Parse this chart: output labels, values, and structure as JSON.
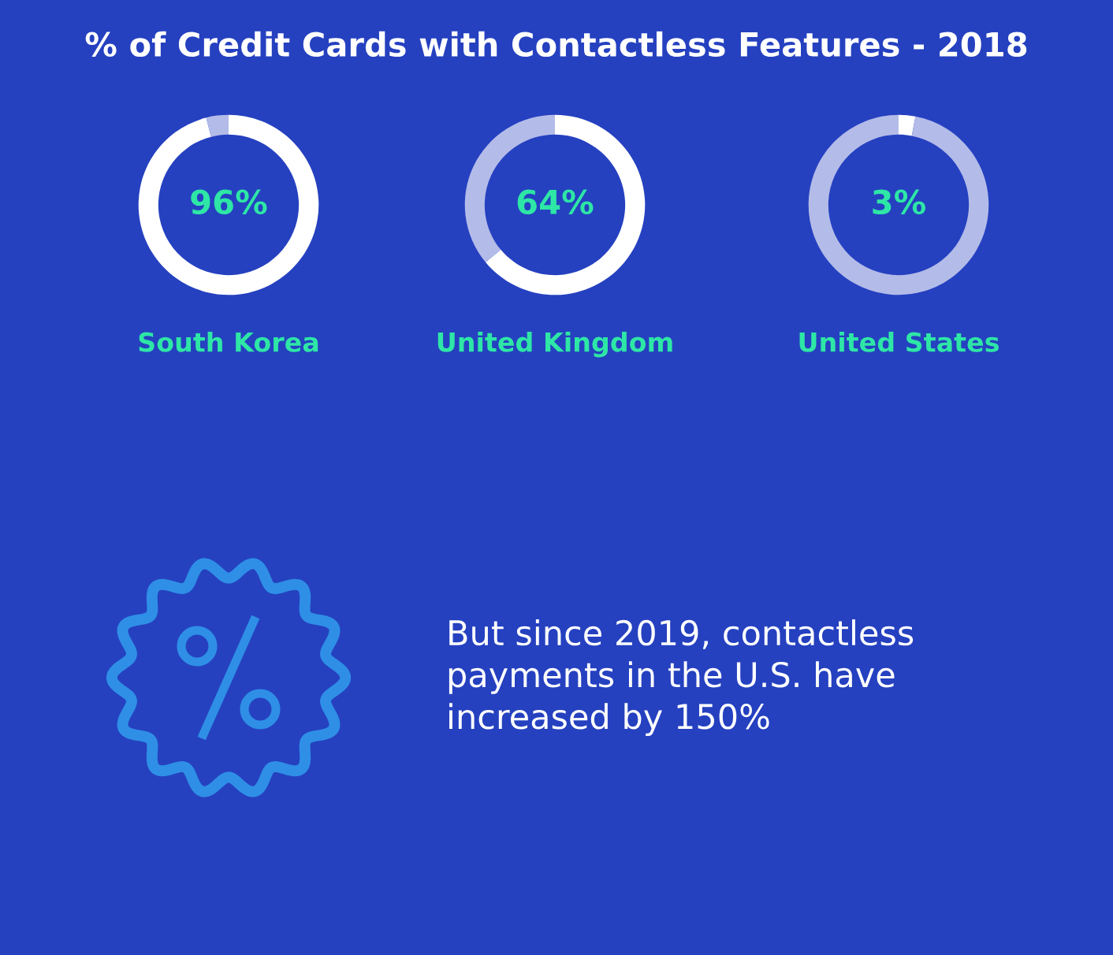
{
  "chart_data": [
    {
      "type": "donut",
      "title": "% of Credit Cards with Contactless Features - 2018",
      "xlabel": "South Korea",
      "categories": [
        null,
        null
      ],
      "values": [
        96,
        4
      ],
      "colors": [
        "#ffffff",
        "#b3bbe8"
      ],
      "value_labels": [
        "96%",
        null
      ]
    },
    {
      "type": "donut",
      "xlabel": "United Kingdom",
      "categories": [
        null,
        null
      ],
      "values": [
        64,
        36
      ],
      "colors": [
        "#ffffff",
        "#b3bbe8"
      ],
      "value_labels": [
        "64%",
        null
      ]
    },
    {
      "type": "donut",
      "xlabel": "United States",
      "categories": [
        null,
        null
      ],
      "values": [
        3,
        97
      ],
      "colors": [
        "#ffffff",
        "#b3bbe8"
      ],
      "value_labels": [
        "3%",
        null
      ]
    },
    {
      "type": "other",
      "annotations": [
        "But since 2019, contactless\npayments in the U.S. have\nincreased by 150%"
      ]
    }
  ]
}
